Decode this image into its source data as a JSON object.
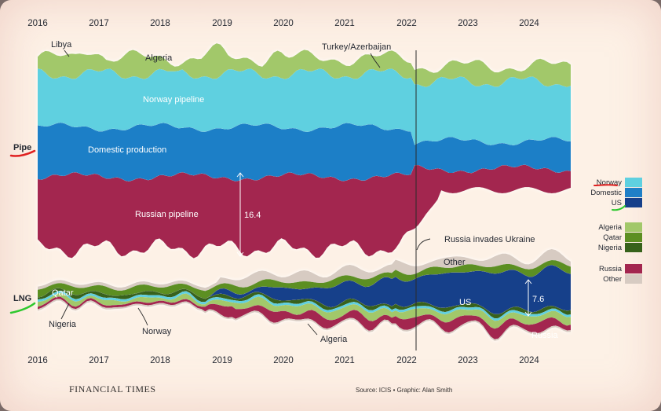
{
  "chart_data": {
    "type": "area",
    "x_ticks": [
      "2016",
      "2017",
      "2018",
      "2019",
      "2020",
      "2021",
      "2022",
      "2023",
      "2024"
    ],
    "panels": [
      {
        "panel_label": "Pipe",
        "series": [
          {
            "name": "Russian pipeline",
            "color": "#a3264f"
          },
          {
            "name": "Domestic production",
            "color": "#1f7fc7"
          },
          {
            "name": "Norway pipeline",
            "color": "#5fd0e0"
          },
          {
            "name": "Algeria",
            "color": "#a2c86a"
          },
          {
            "name": "Libya",
            "color": "#a2c86a"
          },
          {
            "name": "Turkey/Azerbaijan",
            "color": "#a2c86a"
          }
        ],
        "annotations": [
          "16.4",
          "Russia invades Ukraine"
        ]
      },
      {
        "panel_label": "LNG",
        "series": [
          {
            "name": "Qatar",
            "color": "#5c8f22"
          },
          {
            "name": "Nigeria",
            "color": "#37621b"
          },
          {
            "name": "Norway",
            "color": "#5fd0e0"
          },
          {
            "name": "Algeria",
            "color": "#a2c86a"
          },
          {
            "name": "US",
            "color": "#163f8a"
          },
          {
            "name": "Russia",
            "color": "#a3264f"
          },
          {
            "name": "Other",
            "color": "#d7cbc2"
          }
        ],
        "annotations": [
          "7.6"
        ]
      }
    ],
    "legends": [
      {
        "items": [
          {
            "name": "Norway",
            "color": "#5fd0e0"
          },
          {
            "name": "Domestic",
            "color": "#1f7fc7"
          },
          {
            "name": "US",
            "color": "#163f8a"
          }
        ]
      },
      {
        "items": [
          {
            "name": "Algeria",
            "color": "#a2c86a"
          },
          {
            "name": "Qatar",
            "color": "#5c8f22"
          },
          {
            "name": "Nigeria",
            "color": "#37621b"
          }
        ]
      },
      {
        "items": [
          {
            "name": "Russia",
            "color": "#a3264f"
          },
          {
            "name": "Other",
            "color": "#d7cbc2"
          }
        ]
      }
    ]
  },
  "labels": {
    "libya": "Libya",
    "algeria_pipe": "Algeria",
    "turkey": "Turkey/Azerbaijan",
    "norway_pipe": "Norway pipeline",
    "domestic": "Domestic production",
    "russian_pipe": "Russian pipeline",
    "val_pipe": "16.4",
    "invasion": "Russia invades Ukraine",
    "other_lng": "Other",
    "qatar_lng": "Qatar",
    "nigeria_lng": "Nigeria",
    "norway_lng": "Norway",
    "algeria_lng": "Algeria",
    "us_lng": "US",
    "val_lng": "7.6",
    "russia_lng": "Russia",
    "pipe": "Pipe",
    "lng": "LNG"
  },
  "brand": "FINANCIAL TIMES",
  "source": "Source: ICIS • Graphic: Alan Smith"
}
